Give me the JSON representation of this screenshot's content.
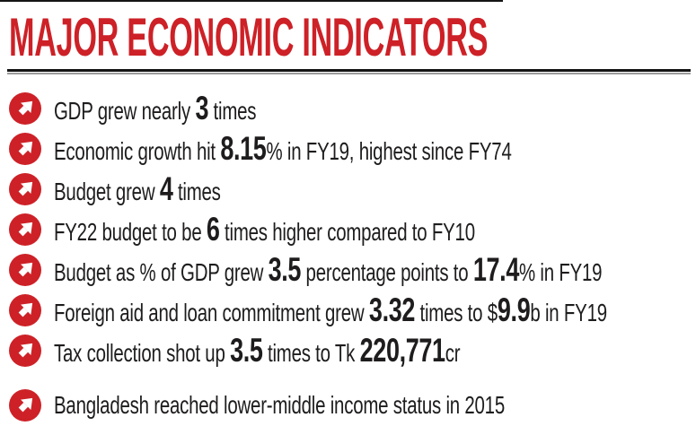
{
  "header": {
    "title": "MAJOR ECONOMIC INDICATORS"
  },
  "colors": {
    "accent_red": "#cd2127",
    "text": "#1e1c1c",
    "rule_dark": "#141414",
    "rule_gray": "#9b9b9b"
  },
  "icons": {
    "bullet": "up-right-arrow-icon"
  },
  "indicators": [
    {
      "segments": [
        {
          "text": "GDP grew nearly ",
          "bold": false
        },
        {
          "text": "3",
          "bold": true
        },
        {
          "text": " times",
          "bold": false
        }
      ]
    },
    {
      "segments": [
        {
          "text": "Economic growth hit ",
          "bold": false
        },
        {
          "text": "8.15",
          "bold": true
        },
        {
          "text": "% in FY19, highest since FY74",
          "bold": false
        }
      ]
    },
    {
      "segments": [
        {
          "text": "Budget grew ",
          "bold": false
        },
        {
          "text": "4",
          "bold": true
        },
        {
          "text": " times",
          "bold": false
        }
      ]
    },
    {
      "segments": [
        {
          "text": "FY22 budget to be ",
          "bold": false
        },
        {
          "text": "6",
          "bold": true
        },
        {
          "text": " times higher compared to FY10",
          "bold": false
        }
      ]
    },
    {
      "segments": [
        {
          "text": "Budget as % of GDP grew ",
          "bold": false
        },
        {
          "text": "3.5",
          "bold": true
        },
        {
          "text": " percentage points to ",
          "bold": false
        },
        {
          "text": "17.4",
          "bold": true
        },
        {
          "text": "% in FY19",
          "bold": false
        }
      ]
    },
    {
      "segments": [
        {
          "text": "Foreign aid and loan commitment grew ",
          "bold": false
        },
        {
          "text": "3.32",
          "bold": true
        },
        {
          "text": " times to $",
          "bold": false
        },
        {
          "text": "9.9",
          "bold": true
        },
        {
          "text": "b in FY19",
          "bold": false
        }
      ]
    },
    {
      "segments": [
        {
          "text": "Tax collection shot up ",
          "bold": false
        },
        {
          "text": "3.5",
          "bold": true
        },
        {
          "text": " times to Tk ",
          "bold": false
        },
        {
          "text": "220,771",
          "bold": true
        },
        {
          "text": "cr",
          "bold": false
        }
      ]
    },
    {
      "segments": [
        {
          "text": "Bangladesh reached lower-middle income status in 2015",
          "bold": false
        }
      ]
    }
  ]
}
